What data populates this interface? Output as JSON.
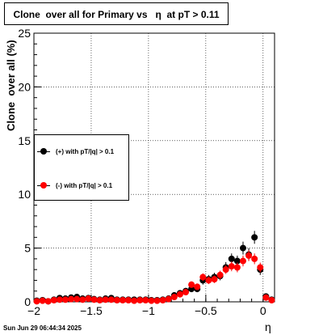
{
  "title": "Clone  over all for Primary vs   η  at pT > 0.11",
  "footer": "Sun Jun 29 06:44:34 2025",
  "chart_data": {
    "type": "scatter",
    "xlabel": "η",
    "ylabel": "Clone  over all (%)",
    "xlim": [
      -2.0,
      0.1
    ],
    "ylim": [
      0,
      25
    ],
    "grid": true,
    "legend_position": "left-middle",
    "x_ticks": [
      -2,
      -1.5,
      -1,
      -0.5,
      0
    ],
    "x_tick_labels": [
      "−2",
      "−1.5",
      "−1",
      "−0.5",
      "0"
    ],
    "y_ticks": [
      0,
      5,
      10,
      15,
      20,
      25
    ],
    "y_tick_labels": [
      "0",
      "5",
      "10",
      "15",
      "20",
      "25"
    ],
    "series": [
      {
        "name": "(+) with pT/|q| > 0.1",
        "color": "#000000",
        "x": [
          -1.975,
          -1.925,
          -1.875,
          -1.825,
          -1.775,
          -1.725,
          -1.675,
          -1.625,
          -1.575,
          -1.525,
          -1.475,
          -1.425,
          -1.375,
          -1.325,
          -1.275,
          -1.225,
          -1.175,
          -1.125,
          -1.075,
          -1.025,
          -0.975,
          -0.925,
          -0.875,
          -0.825,
          -0.775,
          -0.725,
          -0.675,
          -0.625,
          -0.575,
          -0.525,
          -0.475,
          -0.425,
          -0.375,
          -0.325,
          -0.275,
          -0.225,
          -0.175,
          -0.125,
          -0.075,
          -0.025,
          0.025,
          0.075
        ],
        "y": [
          0.1,
          0.15,
          0.05,
          0.2,
          0.35,
          0.3,
          0.4,
          0.45,
          0.3,
          0.35,
          0.25,
          0.2,
          0.3,
          0.35,
          0.2,
          0.2,
          0.2,
          0.2,
          0.2,
          0.2,
          0.15,
          0.15,
          0.2,
          0.3,
          0.6,
          0.8,
          1.0,
          1.2,
          1.2,
          2.0,
          2.1,
          2.3,
          2.4,
          3.2,
          4.0,
          3.8,
          5.0,
          4.4,
          6.0,
          3.0,
          0.5,
          0.2
        ],
        "err": [
          0.1,
          0.1,
          0.05,
          0.1,
          0.15,
          0.15,
          0.2,
          0.2,
          0.15,
          0.15,
          0.15,
          0.1,
          0.15,
          0.15,
          0.1,
          0.1,
          0.1,
          0.1,
          0.1,
          0.1,
          0.1,
          0.1,
          0.1,
          0.15,
          0.2,
          0.25,
          0.3,
          0.3,
          0.3,
          0.4,
          0.4,
          0.4,
          0.4,
          0.5,
          0.5,
          0.5,
          0.6,
          0.6,
          0.6,
          0.5,
          0.2,
          0.1
        ]
      },
      {
        "name": "(-) with pT/|q| > 0.1",
        "color": "#ff0000",
        "x": [
          -1.975,
          -1.925,
          -1.875,
          -1.825,
          -1.775,
          -1.725,
          -1.675,
          -1.625,
          -1.575,
          -1.525,
          -1.475,
          -1.425,
          -1.375,
          -1.325,
          -1.275,
          -1.225,
          -1.175,
          -1.125,
          -1.075,
          -1.025,
          -0.975,
          -0.925,
          -0.875,
          -0.825,
          -0.775,
          -0.725,
          -0.675,
          -0.625,
          -0.575,
          -0.525,
          -0.475,
          -0.425,
          -0.375,
          -0.325,
          -0.275,
          -0.225,
          -0.175,
          -0.125,
          -0.075,
          -0.025,
          0.025,
          0.075
        ],
        "y": [
          0.05,
          0.1,
          0.05,
          0.15,
          0.2,
          0.2,
          0.25,
          0.25,
          0.2,
          0.3,
          0.2,
          0.15,
          0.2,
          0.2,
          0.15,
          0.15,
          0.15,
          0.1,
          0.15,
          0.15,
          0.1,
          0.1,
          0.15,
          0.25,
          0.45,
          0.7,
          0.9,
          1.6,
          1.4,
          2.3,
          2.0,
          2.1,
          2.5,
          3.0,
          3.3,
          3.2,
          3.8,
          4.3,
          4.0,
          3.2,
          0.4,
          0.15
        ],
        "err": [
          0.05,
          0.05,
          0.05,
          0.1,
          0.1,
          0.1,
          0.1,
          0.1,
          0.1,
          0.15,
          0.1,
          0.1,
          0.1,
          0.1,
          0.1,
          0.1,
          0.1,
          0.05,
          0.1,
          0.1,
          0.05,
          0.05,
          0.1,
          0.1,
          0.15,
          0.2,
          0.25,
          0.3,
          0.3,
          0.35,
          0.35,
          0.35,
          0.4,
          0.4,
          0.45,
          0.45,
          0.5,
          0.5,
          0.5,
          0.45,
          0.15,
          0.1
        ]
      }
    ]
  }
}
